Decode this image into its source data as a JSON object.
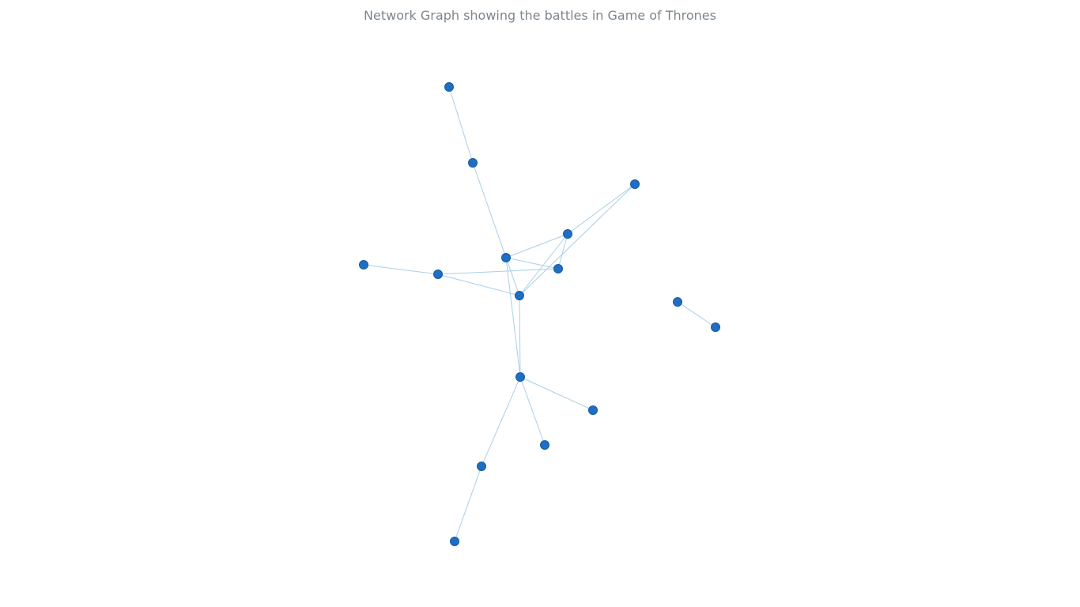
{
  "title": "Network Graph showing the battles in Game of Thrones",
  "colors": {
    "node_fill": "#1e6fc4",
    "node_stroke": "#165a9f",
    "edge": "#a9cfe8",
    "title": "#7c868e",
    "background": "#ffffff"
  },
  "graph": {
    "nodes": [
      "n1",
      "n2",
      "n3",
      "n4",
      "n5",
      "n6",
      "n7",
      "n8",
      "n9",
      "n10",
      "n11",
      "n12",
      "n13",
      "n14",
      "n15",
      "n16",
      "n17"
    ],
    "edges": [
      [
        "n1",
        "n2"
      ],
      [
        "n2",
        "n5"
      ],
      [
        "n5",
        "n4"
      ],
      [
        "n5",
        "n6"
      ],
      [
        "n5",
        "n7"
      ],
      [
        "n5",
        "n12"
      ],
      [
        "n4",
        "n10"
      ],
      [
        "n4",
        "n6"
      ],
      [
        "n4",
        "n7"
      ],
      [
        "n3",
        "n7"
      ],
      [
        "n9",
        "n8"
      ],
      [
        "n9",
        "n6"
      ],
      [
        "n9",
        "n7"
      ],
      [
        "n7",
        "n12"
      ],
      [
        "n12",
        "n13"
      ],
      [
        "n12",
        "n14"
      ],
      [
        "n12",
        "n15"
      ],
      [
        "n15",
        "n16"
      ],
      [
        "n11",
        "n17"
      ]
    ]
  }
}
